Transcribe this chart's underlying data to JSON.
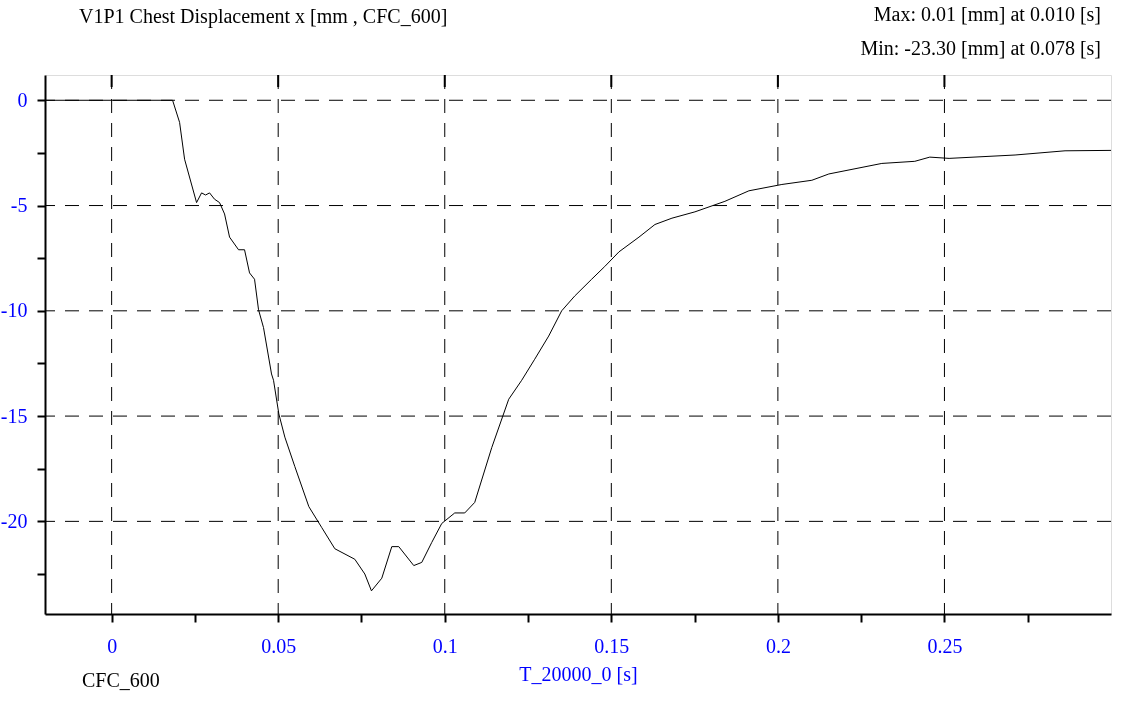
{
  "chart_data": {
    "type": "line",
    "title": "V1P1 Chest Displacement x [mm , CFC_600]",
    "xlabel": "T_20000_0 [s]",
    "annotations": [
      "Max: 0.01 [mm] at 0.010 [s]",
      "Min: -23.30 [mm] at 0.078 [s]",
      "CFC_600"
    ],
    "x": [
      -0.02,
      0.0183,
      0.0204,
      0.0219,
      0.0255,
      0.027,
      0.0282,
      0.0294,
      0.0309,
      0.0324,
      0.0339,
      0.0354,
      0.0381,
      0.0399,
      0.0414,
      0.0429,
      0.0441,
      0.0456,
      0.048,
      0.0486,
      0.0502,
      0.052,
      0.055,
      0.0592,
      0.0631,
      0.067,
      0.073,
      0.076,
      0.078,
      0.0811,
      0.0841,
      0.0862,
      0.0907,
      0.0931,
      0.0961,
      0.0991,
      0.103,
      0.106,
      0.109,
      0.1141,
      0.1192,
      0.1231,
      0.127,
      0.1312,
      0.1351,
      0.139,
      0.1441,
      0.148,
      0.1523,
      0.1583,
      0.1631,
      0.1682,
      0.1751,
      0.1841,
      0.1913,
      0.2012,
      0.2102,
      0.2153,
      0.2312,
      0.2411,
      0.2456,
      0.2514,
      0.2712,
      0.2862,
      0.3
    ],
    "series": [
      {
        "color": "#000000",
        "values": [
          0,
          0,
          -1.05,
          -2.8,
          -4.86,
          -4.4,
          -4.5,
          -4.4,
          -4.7,
          -4.86,
          -5.4,
          -6.5,
          -7.1,
          -7.1,
          -8.2,
          -8.5,
          -9.95,
          -10.8,
          -13.0,
          -13.3,
          -14.9,
          -16.0,
          -17.4,
          -19.3,
          -20.3,
          -21.3,
          -21.8,
          -22.5,
          -23.3,
          -22.7,
          -21.2,
          -21.2,
          -22.1,
          -21.95,
          -21.0,
          -20.1,
          -19.6,
          -19.6,
          -19.1,
          -16.5,
          -14.2,
          -13.3,
          -12.3,
          -11.2,
          -10.0,
          -9.3,
          -8.5,
          -7.9,
          -7.2,
          -6.5,
          -5.9,
          -5.6,
          -5.3,
          -4.8,
          -4.3,
          -4.0,
          -3.8,
          -3.5,
          -3.0,
          -2.9,
          -2.7,
          -2.76,
          -2.6,
          -2.4,
          -2.38
        ]
      }
    ],
    "xlim": [
      -0.02,
      0.3
    ],
    "xticks": [
      0,
      {
        "value": 0.025,
        "label": null
      },
      0.05,
      {
        "value": 0.075,
        "label": null
      },
      0.1,
      {
        "value": 0.125,
        "label": null
      },
      0.15,
      {
        "value": 0.175,
        "label": null
      },
      0.2,
      {
        "value": 0.225,
        "label": null
      },
      0.25,
      {
        "value": 0.275,
        "label": null
      }
    ],
    "ylim": [
      -24.4,
      1.2
    ],
    "yticks": [
      0,
      {
        "value": -2.5,
        "label": null
      },
      -5,
      {
        "value": -7.5,
        "label": null
      },
      -10,
      {
        "value": -12.5,
        "label": null
      },
      -15,
      {
        "value": -17.5,
        "label": null
      },
      -20,
      {
        "value": -22.5,
        "label": null
      }
    ],
    "grid": true,
    "line_style": "solid",
    "marker": "none",
    "legend": false
  }
}
